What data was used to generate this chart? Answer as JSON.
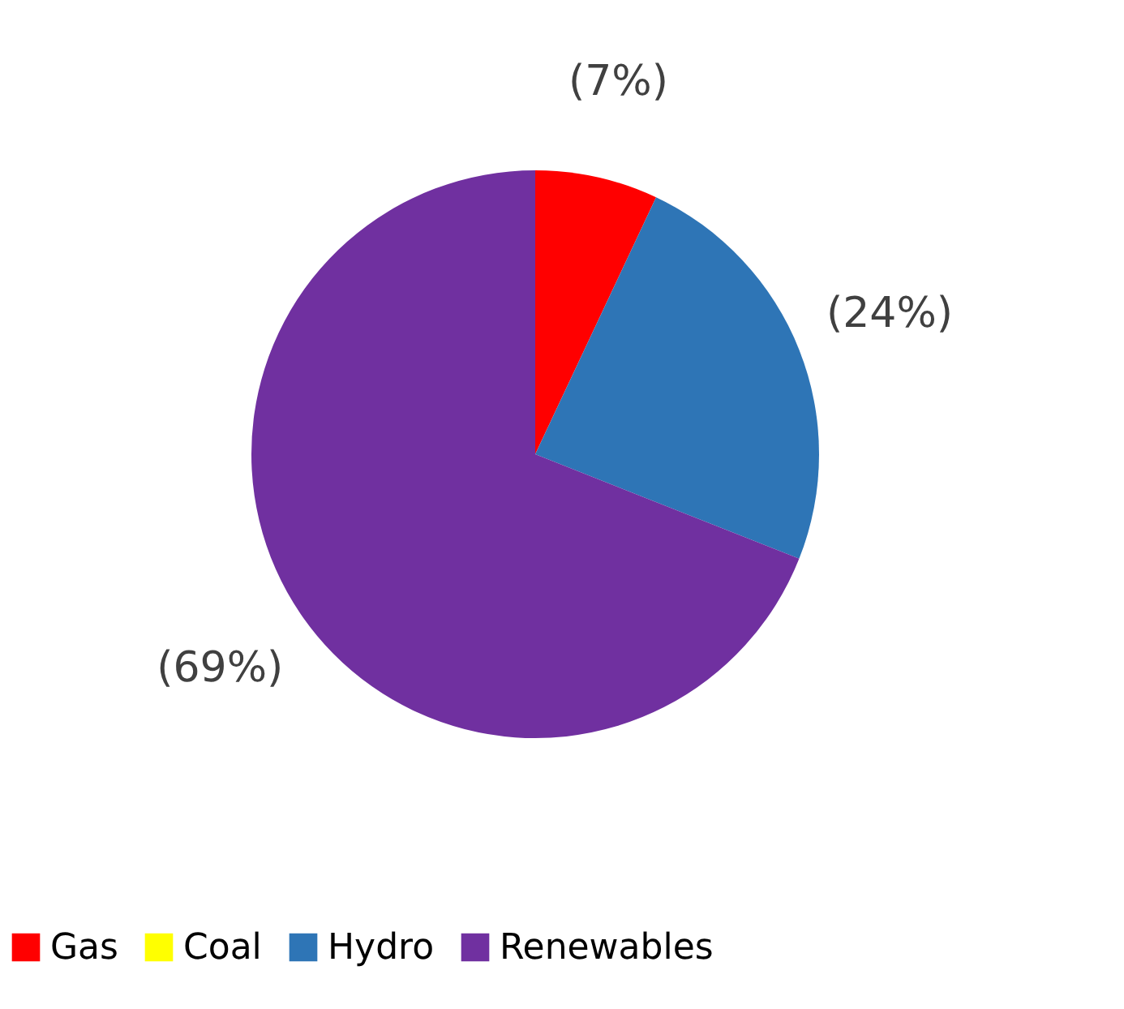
{
  "chart_data": {
    "type": "pie",
    "categories": [
      "Gas",
      "Coal",
      "Hydro",
      "Renewables"
    ],
    "values": [
      7,
      0,
      24,
      69
    ],
    "colors": [
      "#ff0000",
      "#ffff00",
      "#2e75b6",
      "#7030a0"
    ],
    "value_labels": [
      "(7%)",
      null,
      "(24%)",
      "(69%)"
    ],
    "legend": "bottom"
  }
}
